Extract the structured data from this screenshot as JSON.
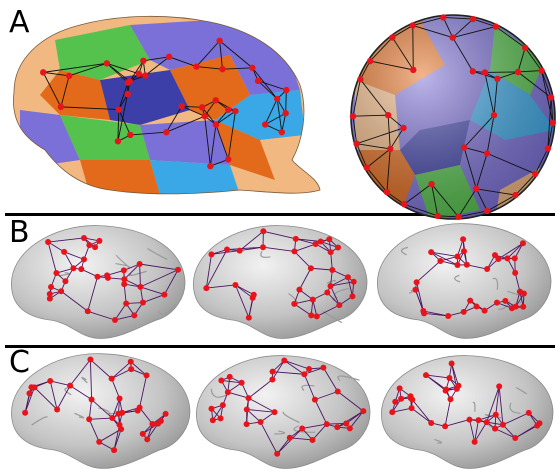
{
  "panels": {
    "a": {
      "label": "A"
    },
    "b": {
      "label": "B"
    },
    "c": {
      "label": "C"
    }
  },
  "colors": {
    "node": "#e8141c",
    "edge_dark": "#111111",
    "edge_purple": "#4a1560",
    "cortex_gray": "#bdbdbd",
    "patch_purple": "#7b6fd8",
    "patch_orange": "#e36a1a",
    "patch_green": "#55c24d",
    "patch_blue": "#3aa7e6",
    "patch_peach": "#f1b882",
    "patch_navy": "#3d3fa8"
  }
}
